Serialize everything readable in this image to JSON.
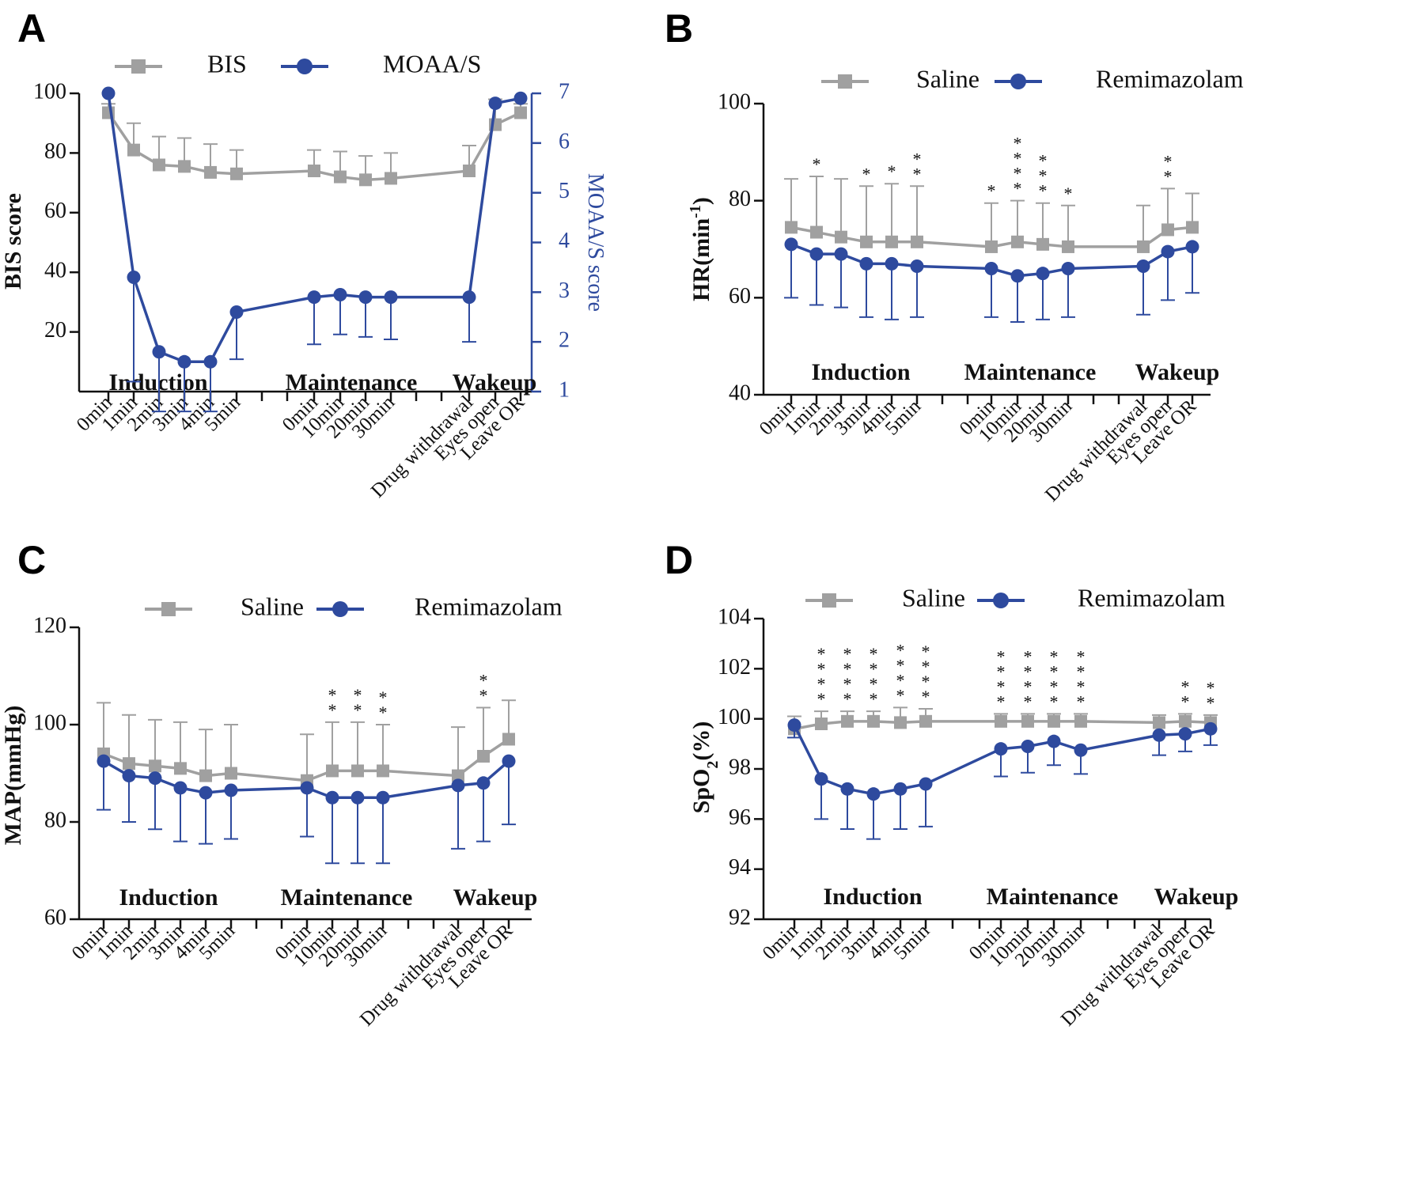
{
  "colors": {
    "saline": "#a0a0a0",
    "remimazolam": "#2e4a9e",
    "axis": "#111111",
    "moaas_axis": "#2e4a9e"
  },
  "chart_data": [
    {
      "id": "A",
      "letter": "A",
      "type": "line",
      "categories": [
        "0min",
        "1min",
        "2min",
        "3min",
        "4min",
        "5min",
        "0min",
        "10min",
        "20min",
        "30min",
        "Drug withdrawal",
        "Eyes open",
        "Leave OR"
      ],
      "ylabel": "BIS score",
      "ylabel_right": "MOAA/S score",
      "ylim": [
        0,
        100
      ],
      "yticks": [
        20,
        40,
        60,
        80,
        100
      ],
      "ylim_right": [
        1,
        7
      ],
      "yticks_right": [
        1,
        2,
        3,
        4,
        5,
        6,
        7
      ],
      "phases": [
        "Induction",
        "Maintenance",
        "Wakeup"
      ],
      "legend": [
        "BIS",
        "MOAA/S"
      ],
      "series": [
        {
          "name": "BIS",
          "axis": "left",
          "color": "saline",
          "marker": "square",
          "values": [
            93.5,
            81,
            76,
            75.5,
            73.5,
            73,
            74,
            72,
            71,
            71.5,
            74,
            89.5,
            93.5
          ],
          "err": [
            3,
            9,
            9.5,
            9.5,
            9.5,
            8,
            7,
            8.5,
            8,
            8.5,
            8.5,
            8.5,
            3
          ]
        },
        {
          "name": "MOAA/S",
          "axis": "right",
          "color": "remimazolam",
          "marker": "circle",
          "values": [
            7,
            3.3,
            1.8,
            1.6,
            1.6,
            2.6,
            2.9,
            2.95,
            2.9,
            2.9,
            2.9,
            6.8,
            6.9
          ],
          "err": [
            0,
            2.1,
            1.2,
            1.0,
            1.0,
            0.95,
            0.95,
            0.8,
            0.8,
            0.85,
            0.9,
            0,
            0
          ]
        }
      ],
      "significance": [
        "",
        "",
        "",
        "",
        "",
        "",
        "",
        "",
        "",
        "",
        "",
        "",
        ""
      ]
    },
    {
      "id": "B",
      "letter": "B",
      "type": "line",
      "categories": [
        "0min",
        "1min",
        "2min",
        "3min",
        "4min",
        "5min",
        "0min",
        "10min",
        "20min",
        "30min",
        "Drug withdrawal",
        "Eyes open",
        "Leave OR"
      ],
      "ylabel": "HR(min",
      "ylabel_sup": "-1",
      "ylabel_end": ")",
      "ylim": [
        40,
        100
      ],
      "yticks": [
        40,
        60,
        80,
        100
      ],
      "phases": [
        "Induction",
        "Maintenance",
        "Wakeup"
      ],
      "legend": [
        "Saline",
        "Remimazolam"
      ],
      "series": [
        {
          "name": "Saline",
          "color": "saline",
          "marker": "square",
          "values": [
            74.5,
            73.5,
            72.5,
            71.5,
            71.5,
            71.5,
            70.5,
            71.5,
            71,
            70.5,
            70.5,
            74,
            74.5
          ],
          "err": [
            10,
            11.5,
            12,
            11.5,
            12,
            11.5,
            9,
            8.5,
            8.5,
            8.5,
            8.5,
            8.5,
            7
          ]
        },
        {
          "name": "Remimazolam",
          "color": "remimazolam",
          "marker": "circle",
          "values": [
            71,
            69,
            69,
            67,
            67,
            66.5,
            66,
            64.5,
            65,
            66,
            66.5,
            69.5,
            70.5
          ],
          "err": [
            11,
            10.5,
            11,
            11,
            11.5,
            10.5,
            10,
            9.5,
            9.5,
            10,
            10,
            10,
            9.5
          ]
        }
      ],
      "significance": [
        "",
        "*",
        "",
        "*",
        "*",
        "**",
        "*",
        "****",
        "***",
        "*",
        "",
        "**",
        ""
      ]
    },
    {
      "id": "C",
      "letter": "C",
      "type": "line",
      "categories": [
        "0min",
        "1min",
        "2min",
        "3min",
        "4min",
        "5min",
        "0min",
        "10min",
        "20min",
        "30min",
        "Drug withdrawal",
        "Eyes open",
        "Leave OR"
      ],
      "ylabel": "MAP(mmHg)",
      "ylim": [
        60,
        120
      ],
      "yticks": [
        60,
        80,
        100,
        120
      ],
      "phases": [
        "Induction",
        "Maintenance",
        "Wakeup"
      ],
      "legend": [
        "Saline",
        "Remimazolam"
      ],
      "series": [
        {
          "name": "Saline",
          "color": "saline",
          "marker": "square",
          "values": [
            94,
            92,
            91.5,
            91,
            89.5,
            90,
            88.5,
            90.5,
            90.5,
            90.5,
            89.5,
            93.5,
            97
          ],
          "err": [
            10.5,
            10,
            9.5,
            9.5,
            9.5,
            10,
            9.5,
            10,
            10,
            9.5,
            10,
            10,
            8
          ]
        },
        {
          "name": "Remimazolam",
          "color": "remimazolam",
          "marker": "circle",
          "values": [
            92.5,
            89.5,
            89,
            87,
            86,
            86.5,
            87,
            85,
            85,
            85,
            87.5,
            88,
            92.5
          ],
          "err": [
            10,
            9.5,
            10.5,
            11,
            10.5,
            10,
            10,
            13.5,
            13.5,
            13.5,
            13,
            12,
            13
          ]
        }
      ],
      "significance": [
        "",
        "",
        "",
        "",
        "",
        "",
        "",
        "**",
        "**",
        "**",
        "",
        "**",
        ""
      ]
    },
    {
      "id": "D",
      "letter": "D",
      "type": "line",
      "categories": [
        "0min",
        "1min",
        "2min",
        "3min",
        "4min",
        "5min",
        "0min",
        "10min",
        "20min",
        "30min",
        "Drug withdrawal",
        "Eyes open",
        "Leave OR"
      ],
      "ylabel": "SpO",
      "ylabel_sub": "2",
      "ylabel_end": "(%)",
      "ylim": [
        92,
        104
      ],
      "yticks": [
        92,
        94,
        96,
        98,
        100,
        102,
        104
      ],
      "phases": [
        "Induction",
        "Maintenance",
        "Wakeup"
      ],
      "legend": [
        "Saline",
        "Remimazolam"
      ],
      "series": [
        {
          "name": "Saline",
          "color": "saline",
          "marker": "square",
          "values": [
            99.6,
            99.8,
            99.9,
            99.9,
            99.85,
            99.9,
            99.9,
            99.9,
            99.9,
            99.9,
            99.85,
            99.9,
            99.85
          ],
          "err": [
            0.5,
            0.5,
            0.4,
            0.4,
            0.6,
            0.5,
            0.3,
            0.3,
            0.3,
            0.3,
            0.3,
            0.3,
            0.3
          ]
        },
        {
          "name": "Remimazolam",
          "color": "remimazolam",
          "marker": "circle",
          "values": [
            99.75,
            97.6,
            97.2,
            97,
            97.2,
            97.4,
            98.8,
            98.9,
            99.1,
            98.75,
            99.35,
            99.4,
            99.6
          ],
          "err": [
            0.5,
            1.6,
            1.6,
            1.8,
            1.6,
            1.7,
            1.1,
            1.05,
            0.95,
            0.95,
            0.8,
            0.7,
            0.65
          ]
        }
      ],
      "significance": [
        "",
        "****",
        "****",
        "****",
        "****",
        "****",
        "****",
        "****",
        "****",
        "****",
        "",
        "**",
        "**"
      ]
    }
  ]
}
